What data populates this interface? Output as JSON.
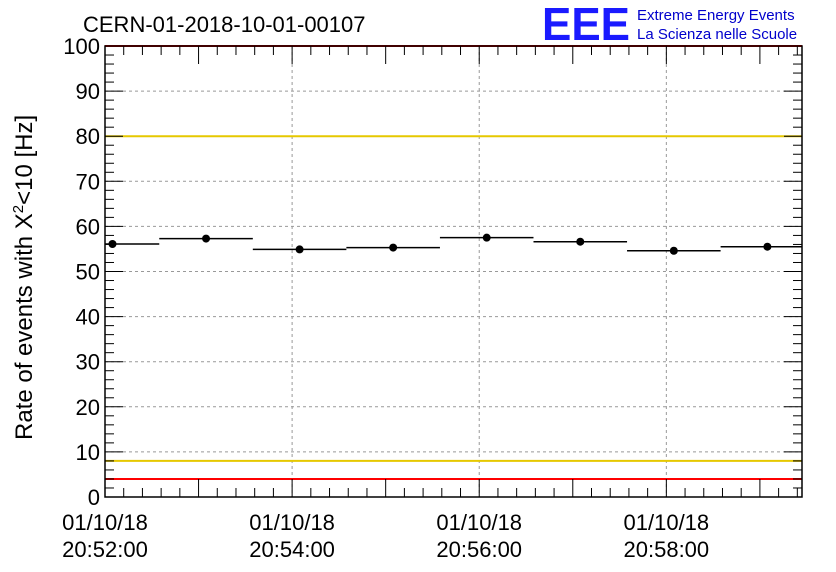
{
  "chart_data": {
    "type": "scatter",
    "title": "CERN-01-2018-10-01-00107",
    "ylabel_parts": {
      "before": "Rate of events with X",
      "sup": "2",
      "after": "<10 [Hz]"
    },
    "xlabel": "",
    "ylim": [
      0,
      100
    ],
    "y_ticks": [
      0,
      10,
      20,
      30,
      40,
      50,
      60,
      70,
      80,
      90,
      100
    ],
    "x_range_minutes": [
      0,
      7.45
    ],
    "x_tick_labels": [
      {
        "date": "01/10/18",
        "time": "20:52:00",
        "minute": 0
      },
      {
        "date": "01/10/18",
        "time": "20:54:00",
        "minute": 2
      },
      {
        "date": "01/10/18",
        "time": "20:56:00",
        "minute": 4
      },
      {
        "date": "01/10/18",
        "time": "20:58:00",
        "minute": 6
      }
    ],
    "bin_width_minutes": 1,
    "points": [
      {
        "minute": 0.08,
        "y": 56.1
      },
      {
        "minute": 1.08,
        "y": 57.3
      },
      {
        "minute": 2.08,
        "y": 54.9
      },
      {
        "minute": 3.08,
        "y": 55.3
      },
      {
        "minute": 4.08,
        "y": 57.5
      },
      {
        "minute": 5.08,
        "y": 56.6
      },
      {
        "minute": 6.08,
        "y": 54.6
      },
      {
        "minute": 7.08,
        "y": 55.5
      }
    ],
    "reference_lines": [
      {
        "y": 100,
        "color": "#ff0000"
      },
      {
        "y": 80,
        "color": "#e6c800"
      },
      {
        "y": 8,
        "color": "#e6c800"
      },
      {
        "y": 4,
        "color": "#ff0000"
      }
    ],
    "grid": true
  },
  "logo": {
    "mark": "EEE",
    "line1": "Extreme Energy Events",
    "line2": "La Scienza nelle Scuole",
    "color": "#1a1aff"
  }
}
